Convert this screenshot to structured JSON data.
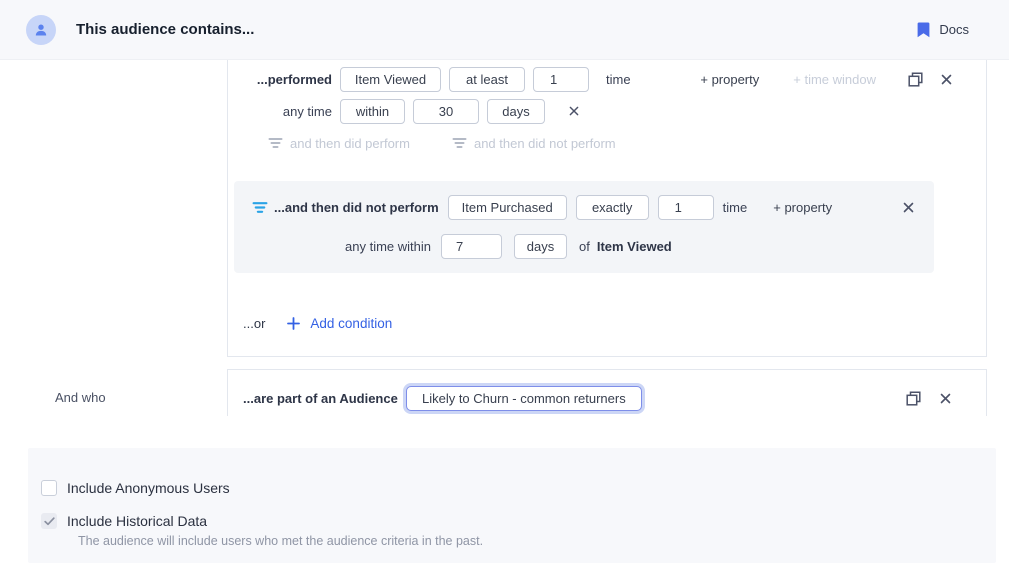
{
  "header": {
    "title": "This audience contains...",
    "docs_label": "Docs"
  },
  "colors": {
    "accent_blue": "#3461e4",
    "filter_icon_blue": "#2aa3e6",
    "bookmark_blue": "#4a6be8",
    "nested_block_bg": "#f3f5f8",
    "panel_bg": "#f7f8fb"
  },
  "group1": {
    "performed": {
      "prefix": "...performed",
      "event": "Item Viewed",
      "operator": "at least",
      "count": "1",
      "suffix": "time",
      "add_property": "+ property",
      "add_time_window": "+ time window"
    },
    "time_window": {
      "prefix": "any time",
      "comparator": "within",
      "value": "30",
      "unit": "days"
    },
    "then_links": {
      "did_perform": "and then did perform",
      "did_not_perform": "and then did not perform"
    },
    "nested": {
      "prefix": "...and then did not perform",
      "event": "Item Purchased",
      "operator": "exactly",
      "count": "1",
      "suffix": "time",
      "add_property": "+ property",
      "window_prefix": "any time within",
      "window_value": "7",
      "window_unit": "days",
      "of_label": "of",
      "of_event": "Item Viewed"
    },
    "or_row": {
      "or_label": "...or",
      "add_condition": "Add condition"
    }
  },
  "and_who_label": "And who",
  "group2": {
    "prefix": "...are part of an Audience",
    "audience_value": "Likely to Churn - common returners"
  },
  "options": {
    "anonymous": {
      "label": "Include Anonymous Users",
      "checked": false
    },
    "historical": {
      "label": "Include Historical Data",
      "description": "The audience will include users who met the audience criteria in the past.",
      "checked": true
    }
  }
}
